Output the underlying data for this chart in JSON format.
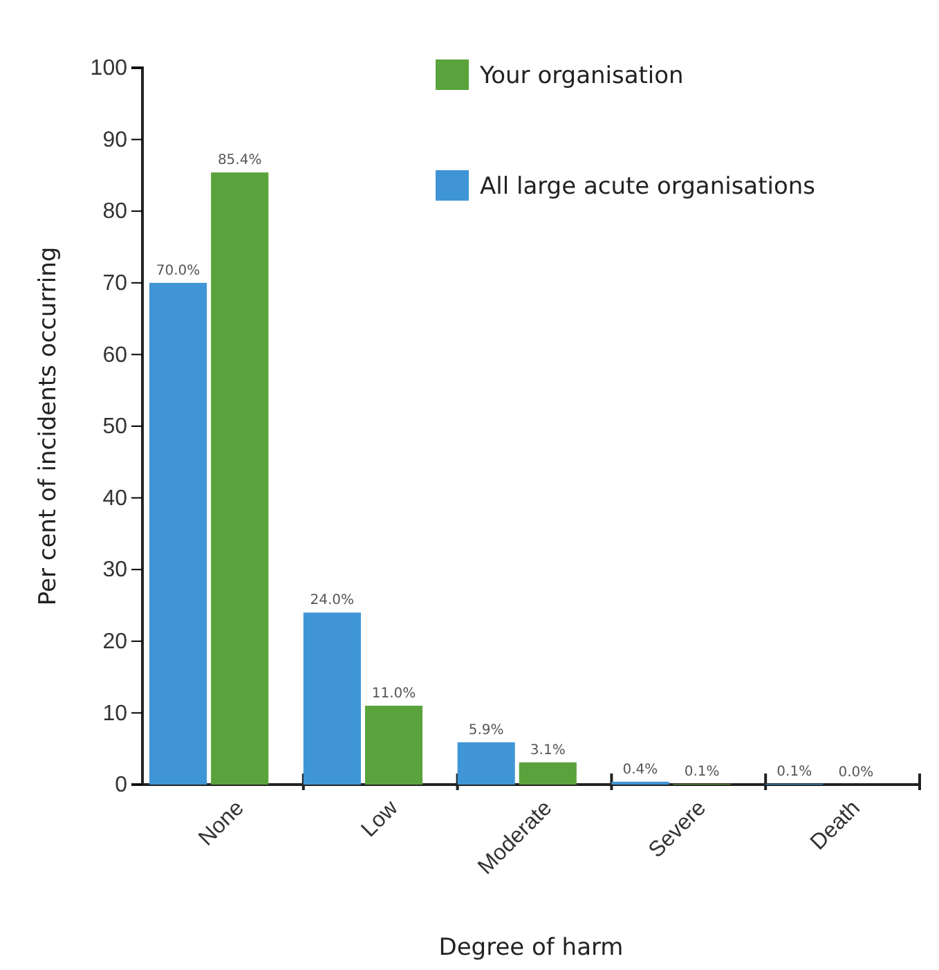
{
  "chart_data": {
    "type": "bar",
    "xlabel": "Degree of harm",
    "ylabel": "Per cent of incidents occurring",
    "categories": [
      "None",
      "Low",
      "Moderate",
      "Severe",
      "Death"
    ],
    "series": [
      {
        "name": "All large acute organisations",
        "color": "#3f95d6",
        "values": [
          70.0,
          24.0,
          5.9,
          0.4,
          0.1
        ],
        "value_labels": [
          "70.0%",
          "24.0%",
          "5.9%",
          "0.4%",
          "0.1%"
        ]
      },
      {
        "name": "Your organisation",
        "color": "#5aa33c",
        "values": [
          85.4,
          11.0,
          3.1,
          0.1,
          0.0
        ],
        "value_labels": [
          "85.4%",
          "11.0%",
          "3.1%",
          "0.1%",
          "0.0%"
        ]
      }
    ],
    "ylim": [
      0,
      100
    ],
    "yticks": [
      0,
      10,
      20,
      30,
      40,
      50,
      60,
      70,
      80,
      90,
      100
    ],
    "legend": "top right",
    "grid": false
  }
}
